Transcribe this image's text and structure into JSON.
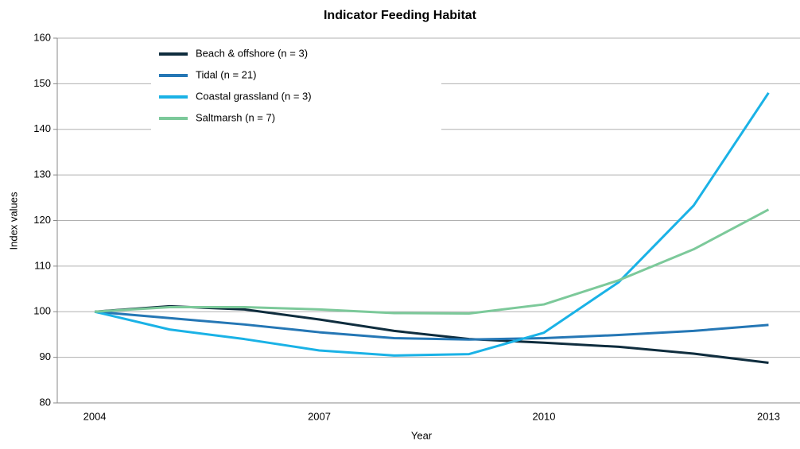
{
  "chart_data": {
    "type": "line",
    "title": "Indicator Feeding Habitat",
    "x_label": "Year",
    "y_label": "Index values",
    "x": [
      2004,
      2005,
      2006,
      2007,
      2008,
      2009,
      2010,
      2011,
      2012,
      2013
    ],
    "xlim": [
      2003.5,
      2013.42
    ],
    "xticks": [
      2004,
      2007,
      2010,
      2013
    ],
    "ylim": [
      80,
      160
    ],
    "yticks": [
      80,
      90,
      100,
      110,
      120,
      130,
      140,
      150,
      160
    ],
    "grid": true,
    "legend": "top-left",
    "series": [
      {
        "name": "Beach & offshore (n = 3)",
        "color": "#0f2d3e",
        "values": [
          100,
          101.2,
          100.5,
          98.3,
          95.8,
          94,
          93.2,
          92.3,
          90.8,
          88.8
        ]
      },
      {
        "name": "Tidal (n = 21)",
        "color": "#2577b5",
        "values": [
          100,
          98.6,
          97.2,
          95.5,
          94.2,
          93.9,
          94.2,
          94.9,
          95.8,
          97.1
        ]
      },
      {
        "name": "Coastal grassland (n = 3)",
        "color": "#1ab2e6",
        "values": [
          100,
          96.1,
          94,
          91.5,
          90.4,
          90.7,
          95.4,
          106.5,
          123.3,
          148
        ]
      },
      {
        "name": "Saltmarsh (n = 7)",
        "color": "#7cc99a",
        "values": [
          100,
          101,
          101,
          100.5,
          99.7,
          99.6,
          101.6,
          106.9,
          113.7,
          122.4
        ]
      }
    ]
  }
}
